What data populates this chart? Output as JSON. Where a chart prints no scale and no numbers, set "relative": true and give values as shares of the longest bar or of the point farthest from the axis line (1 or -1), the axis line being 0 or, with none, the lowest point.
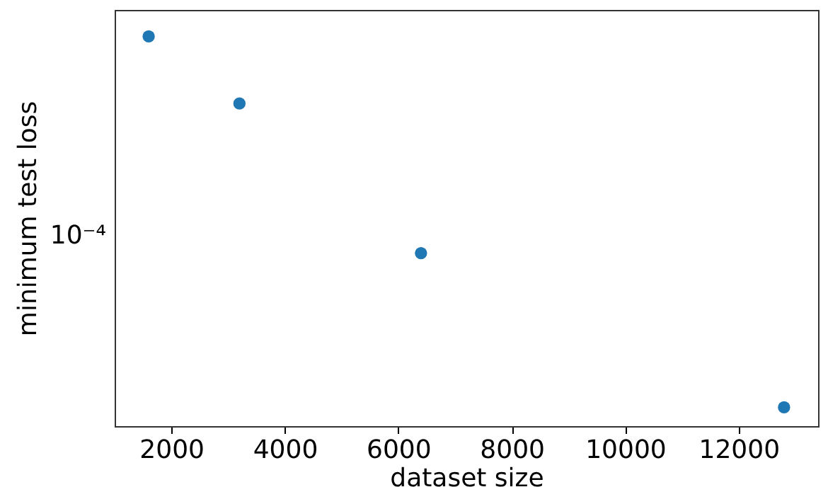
{
  "chart_data": {
    "type": "scatter",
    "xlabel": "dataset size",
    "ylabel": "minimum test loss",
    "x": [
      1600,
      3200,
      6400,
      12800
    ],
    "series": [
      {
        "color": "#1f77b4",
        "values": [
          1,
          0.828,
          0.444,
          0.0483
        ]
      }
    ],
    "relative": true,
    "marker": "circle",
    "xlim": [
      1000,
      13400
    ],
    "xticks": [
      2000,
      4000,
      6000,
      8000,
      10000,
      12000
    ],
    "annotations": [
      "10⁻⁴"
    ]
  }
}
